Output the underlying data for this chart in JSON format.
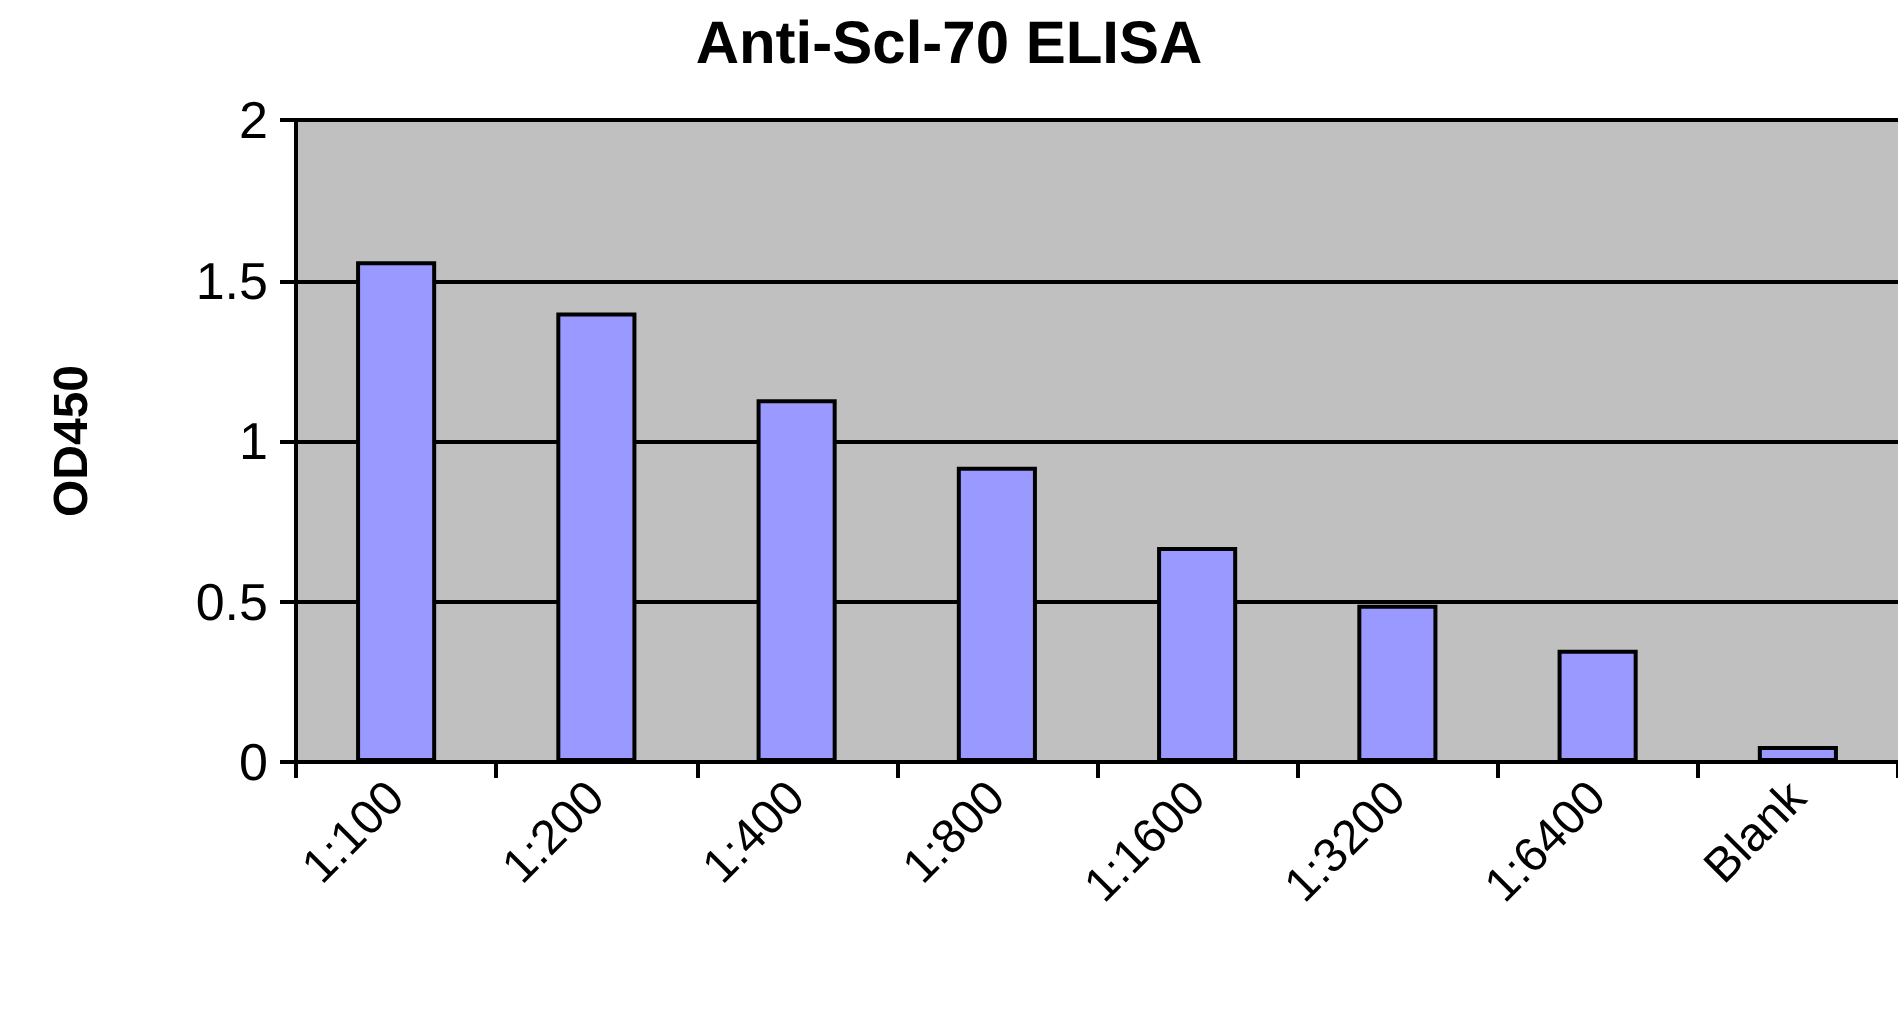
{
  "chart_data": {
    "type": "bar",
    "title": "Anti-Scl-70 ELISA",
    "ylabel": "OD450",
    "categories": [
      "1:100",
      "1:200",
      "1:400",
      "1:800",
      "1:1600",
      "1:3200",
      "1:6400",
      "Blank"
    ],
    "values": [
      1.56,
      1.4,
      1.13,
      0.92,
      0.67,
      0.49,
      0.35,
      0.05
    ],
    "color": "#9999ff",
    "ylim": [
      0,
      2
    ],
    "yticks": [
      0,
      0.5,
      1,
      1.5,
      2
    ],
    "grid": "y"
  }
}
